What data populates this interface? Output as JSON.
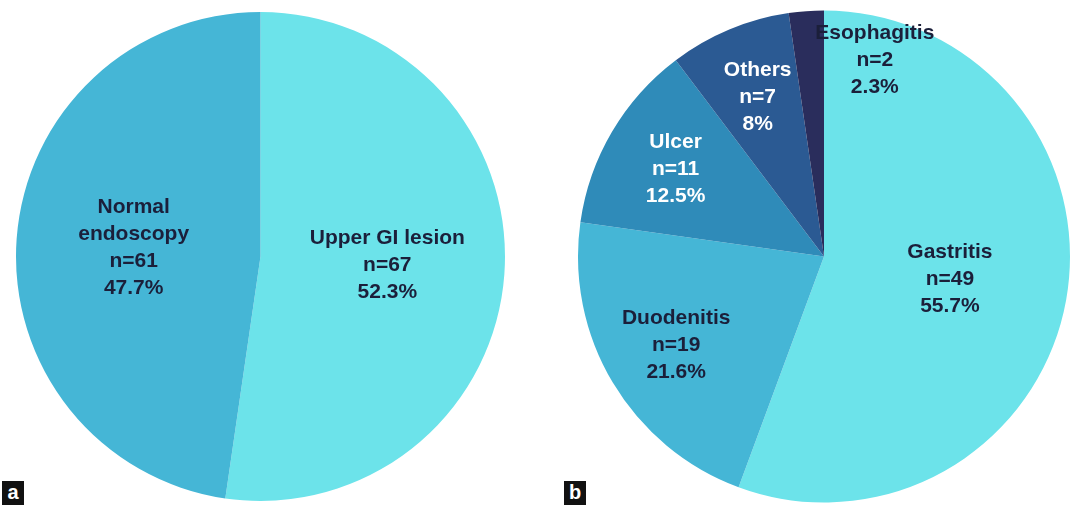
{
  "chart_data": [
    {
      "type": "pie",
      "panel": "a",
      "categories": [
        "Upper GI lesion",
        "Normal endoscopy"
      ],
      "values": [
        52.3,
        47.7
      ],
      "value_labels": [
        "52.3%",
        "47.7%"
      ],
      "count_labels": [
        "n=67",
        "n=61"
      ],
      "colors": [
        "#6ce3ea",
        "#45b6d6"
      ],
      "data_labels": true
    },
    {
      "type": "pie",
      "panel": "b",
      "categories": [
        "Gastritis",
        "Duodenitis",
        "Ulcer",
        "Others",
        "Esophagitis"
      ],
      "values": [
        55.7,
        21.6,
        12.5,
        8,
        2.3
      ],
      "value_labels": [
        "55.7%",
        "21.6%",
        "12.5%",
        "8%",
        "2.3%"
      ],
      "count_labels": [
        "n=49",
        "n=19",
        "n=11",
        "n=7",
        "n=2"
      ],
      "colors": [
        "#6ce3ea",
        "#45b6d6",
        "#2f8bb9",
        "#2b5a93",
        "#2a2d5c"
      ],
      "data_labels": true
    }
  ]
}
